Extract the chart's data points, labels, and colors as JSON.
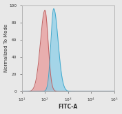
{
  "title": "",
  "xlabel": "FITC-A",
  "ylabel": "Normalized To Mode",
  "xlim_log": [
    10.0,
    100000.0
  ],
  "ylim": [
    0,
    100
  ],
  "yticks": [
    0,
    20,
    40,
    60,
    80,
    100
  ],
  "red_peak_log": 2.0,
  "red_sigma_log": 0.14,
  "red_height": 94,
  "blue_peak_log": 2.38,
  "blue_sigma_log": 0.12,
  "blue_height": 96,
  "red_fill_color": "#e89090",
  "red_edge_color": "#c06060",
  "blue_fill_color": "#80cce8",
  "blue_edge_color": "#40a8cc",
  "background_color": "#e8e8e8",
  "plot_bg_color": "#e8e8e8",
  "alpha_red": 0.65,
  "alpha_blue": 0.65,
  "label_fontsize": 5.0,
  "tick_fontsize": 4.2,
  "xlabel_fontsize": 5.5
}
